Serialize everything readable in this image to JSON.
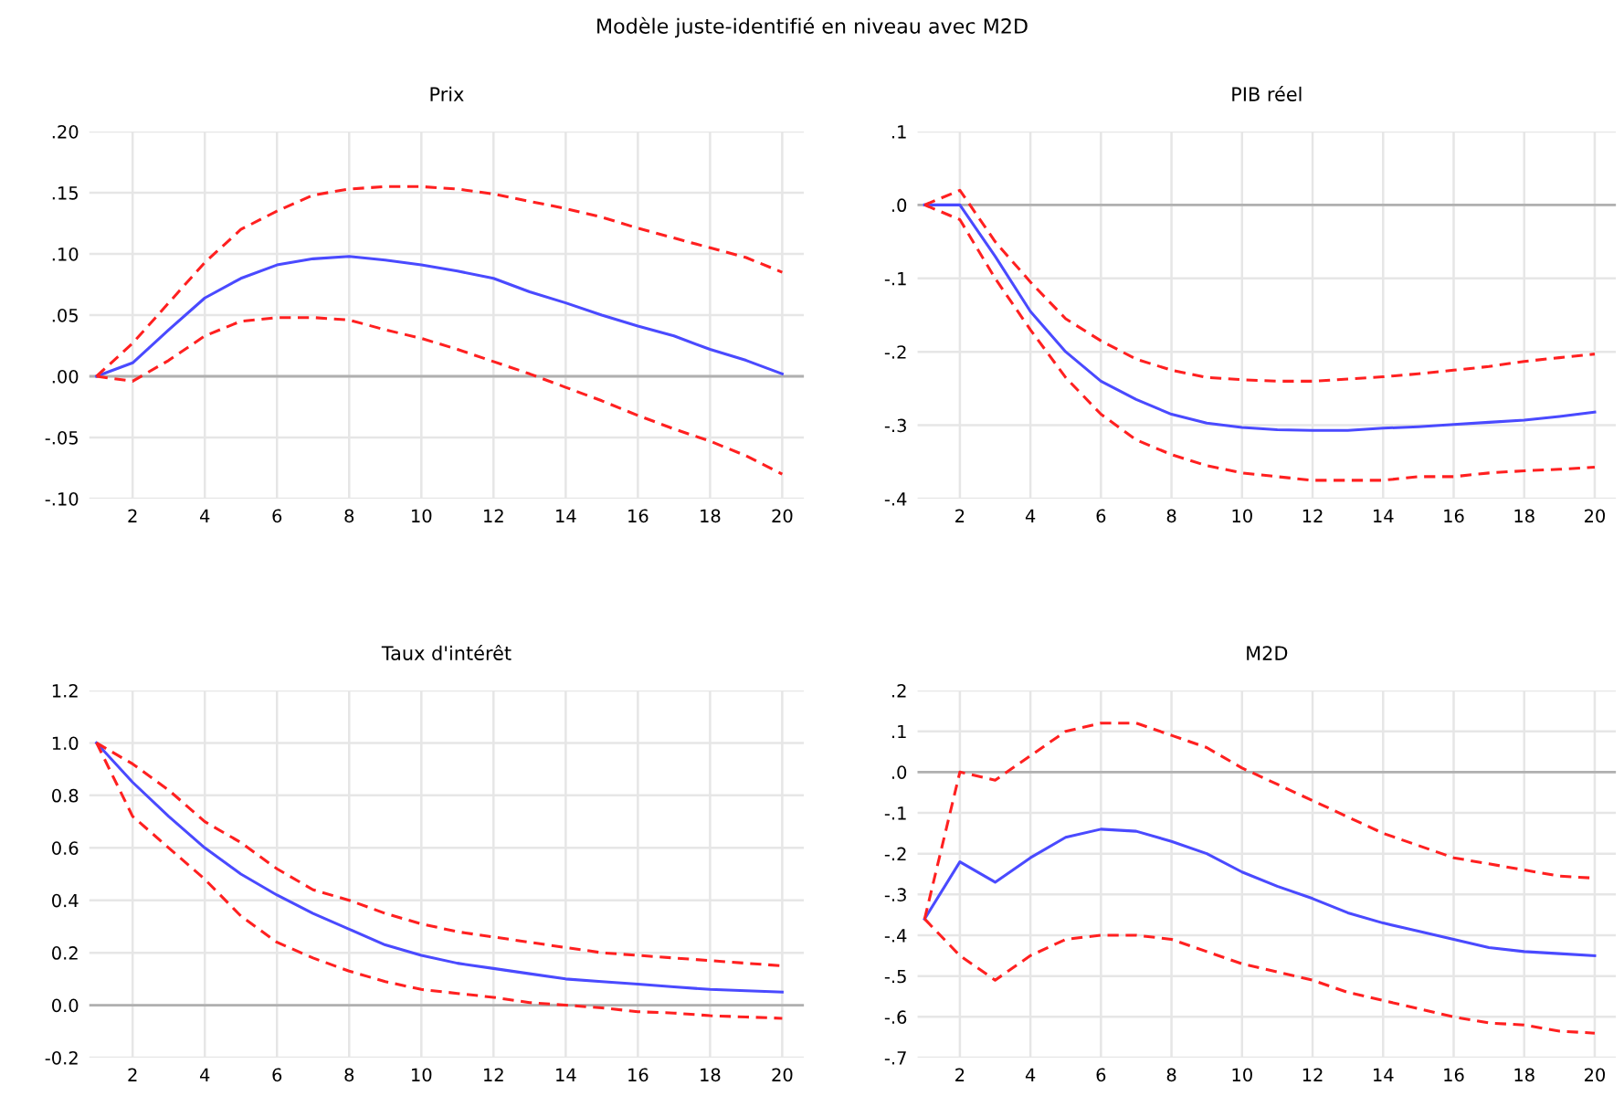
{
  "chart_data": [
    {
      "type": "other",
      "title": "Modèle juste-identifié en niveau avec M2D"
    },
    {
      "type": "line",
      "title": "Prix",
      "x": [
        1,
        2,
        3,
        4,
        5,
        6,
        7,
        8,
        9,
        10,
        11,
        12,
        13,
        14,
        15,
        16,
        17,
        18,
        19,
        20
      ],
      "xlim": [
        0.8,
        20.6
      ],
      "xticks": [
        2,
        4,
        6,
        8,
        10,
        12,
        14,
        16,
        18,
        20
      ],
      "ylim": [
        -0.1,
        0.2
      ],
      "yticks": [
        {
          "value": -0.1,
          "label": "-.10"
        },
        {
          "value": -0.05,
          "label": "-.05"
        },
        {
          "value": 0,
          "label": ".00"
        },
        {
          "value": 0.05,
          "label": ".05"
        },
        {
          "value": 0.1,
          "label": ".10"
        },
        {
          "value": 0.15,
          "label": ".15"
        },
        {
          "value": 0.2,
          "label": ".20"
        }
      ],
      "grid": true,
      "ref_lines": [
        {
          "axis": "y",
          "value": 0,
          "color": "#b0b0b0"
        }
      ],
      "series": [
        {
          "color": "#4a4aff",
          "line_style": "solid",
          "values": [
            0,
            0.011,
            0.038,
            0.064,
            0.08,
            0.091,
            0.096,
            0.098,
            0.095,
            0.091,
            0.086,
            0.08,
            0.069,
            0.06,
            0.05,
            0.041,
            0.033,
            0.022,
            0.013,
            0.002
          ]
        },
        {
          "color": "#ff2020",
          "line_style": "dashed",
          "values": [
            0,
            0.027,
            0.06,
            0.093,
            0.12,
            0.135,
            0.148,
            0.153,
            0.155,
            0.155,
            0.153,
            0.149,
            0.143,
            0.137,
            0.13,
            0.121,
            0.113,
            0.105,
            0.097,
            0.085
          ]
        },
        {
          "color": "#ff2020",
          "line_style": "dashed",
          "values": [
            0,
            -0.004,
            0.013,
            0.033,
            0.045,
            0.048,
            0.048,
            0.046,
            0.038,
            0.031,
            0.022,
            0.012,
            0.002,
            -0.009,
            -0.02,
            -0.032,
            -0.043,
            -0.053,
            -0.065,
            -0.08
          ]
        }
      ]
    },
    {
      "type": "line",
      "title": "PIB réel",
      "x": [
        1,
        2,
        3,
        4,
        5,
        6,
        7,
        8,
        9,
        10,
        11,
        12,
        13,
        14,
        15,
        16,
        17,
        18,
        19,
        20
      ],
      "xlim": [
        0.8,
        20.6
      ],
      "xticks": [
        2,
        4,
        6,
        8,
        10,
        12,
        14,
        16,
        18,
        20
      ],
      "ylim": [
        -0.4,
        0.1
      ],
      "yticks": [
        {
          "value": -0.4,
          "label": "-.4"
        },
        {
          "value": -0.3,
          "label": "-.3"
        },
        {
          "value": -0.2,
          "label": "-.2"
        },
        {
          "value": -0.1,
          "label": "-.1"
        },
        {
          "value": 0,
          "label": ".0"
        },
        {
          "value": 0.1,
          "label": ".1"
        }
      ],
      "grid": true,
      "ref_lines": [
        {
          "axis": "y",
          "value": 0,
          "color": "#b0b0b0"
        }
      ],
      "series": [
        {
          "color": "#4a4aff",
          "line_style": "solid",
          "values": [
            0,
            0,
            -0.07,
            -0.145,
            -0.2,
            -0.24,
            -0.265,
            -0.285,
            -0.297,
            -0.303,
            -0.306,
            -0.307,
            -0.307,
            -0.304,
            -0.302,
            -0.299,
            -0.296,
            -0.293,
            -0.288,
            -0.282
          ]
        },
        {
          "color": "#ff2020",
          "line_style": "dashed",
          "values": [
            0,
            0.02,
            -0.05,
            -0.105,
            -0.155,
            -0.185,
            -0.21,
            -0.225,
            -0.235,
            -0.238,
            -0.24,
            -0.24,
            -0.237,
            -0.234,
            -0.23,
            -0.225,
            -0.22,
            -0.213,
            -0.208,
            -0.203
          ]
        },
        {
          "color": "#ff2020",
          "line_style": "dashed",
          "values": [
            0,
            -0.02,
            -0.1,
            -0.17,
            -0.235,
            -0.285,
            -0.32,
            -0.34,
            -0.355,
            -0.365,
            -0.37,
            -0.375,
            -0.375,
            -0.375,
            -0.37,
            -0.37,
            -0.365,
            -0.362,
            -0.36,
            -0.357
          ]
        }
      ]
    },
    {
      "type": "line",
      "title": "Taux d'intérêt",
      "x": [
        1,
        2,
        3,
        4,
        5,
        6,
        7,
        8,
        9,
        10,
        11,
        12,
        13,
        14,
        15,
        16,
        17,
        18,
        19,
        20
      ],
      "xlim": [
        0.8,
        20.6
      ],
      "xticks": [
        2,
        4,
        6,
        8,
        10,
        12,
        14,
        16,
        18,
        20
      ],
      "ylim": [
        -0.2,
        1.2
      ],
      "yticks": [
        {
          "value": -0.2,
          "label": "-0.2"
        },
        {
          "value": 0,
          "label": "0.0"
        },
        {
          "value": 0.2,
          "label": "0.2"
        },
        {
          "value": 0.4,
          "label": "0.4"
        },
        {
          "value": 0.6,
          "label": "0.6"
        },
        {
          "value": 0.8,
          "label": "0.8"
        },
        {
          "value": 1.0,
          "label": "1.0"
        },
        {
          "value": 1.2,
          "label": "1.2"
        }
      ],
      "grid": true,
      "ref_lines": [
        {
          "axis": "y",
          "value": 0,
          "color": "#b0b0b0"
        }
      ],
      "series": [
        {
          "color": "#4a4aff",
          "line_style": "solid",
          "values": [
            1.0,
            0.85,
            0.72,
            0.6,
            0.5,
            0.42,
            0.35,
            0.29,
            0.23,
            0.19,
            0.16,
            0.14,
            0.12,
            0.1,
            0.09,
            0.08,
            0.07,
            0.06,
            0.055,
            0.05
          ]
        },
        {
          "color": "#ff2020",
          "line_style": "dashed",
          "values": [
            1.0,
            0.92,
            0.82,
            0.7,
            0.62,
            0.52,
            0.44,
            0.4,
            0.35,
            0.31,
            0.28,
            0.26,
            0.24,
            0.22,
            0.2,
            0.19,
            0.18,
            0.17,
            0.16,
            0.15
          ]
        },
        {
          "color": "#ff2020",
          "line_style": "dashed",
          "values": [
            1.0,
            0.72,
            0.6,
            0.48,
            0.34,
            0.24,
            0.18,
            0.13,
            0.09,
            0.06,
            0.045,
            0.03,
            0.01,
            0,
            -0.01,
            -0.025,
            -0.03,
            -0.04,
            -0.045,
            -0.05
          ]
        }
      ]
    },
    {
      "type": "line",
      "title": "M2D",
      "x": [
        1,
        2,
        3,
        4,
        5,
        6,
        7,
        8,
        9,
        10,
        11,
        12,
        13,
        14,
        15,
        16,
        17,
        18,
        19,
        20
      ],
      "xlim": [
        0.8,
        20.6
      ],
      "xticks": [
        2,
        4,
        6,
        8,
        10,
        12,
        14,
        16,
        18,
        20
      ],
      "ylim": [
        -0.7,
        0.2
      ],
      "yticks": [
        {
          "value": -0.7,
          "label": "-.7"
        },
        {
          "value": -0.6,
          "label": "-.6"
        },
        {
          "value": -0.5,
          "label": "-.5"
        },
        {
          "value": -0.4,
          "label": "-.4"
        },
        {
          "value": -0.3,
          "label": "-.3"
        },
        {
          "value": -0.2,
          "label": "-.2"
        },
        {
          "value": -0.1,
          "label": "-.1"
        },
        {
          "value": 0,
          "label": ".0"
        },
        {
          "value": 0.1,
          "label": ".1"
        },
        {
          "value": 0.2,
          "label": ".2"
        }
      ],
      "grid": true,
      "ref_lines": [
        {
          "axis": "y",
          "value": 0,
          "color": "#b0b0b0"
        }
      ],
      "series": [
        {
          "color": "#4a4aff",
          "line_style": "solid",
          "values": [
            -0.36,
            -0.22,
            -0.27,
            -0.21,
            -0.16,
            -0.14,
            -0.145,
            -0.17,
            -0.2,
            -0.245,
            -0.28,
            -0.31,
            -0.345,
            -0.37,
            -0.39,
            -0.41,
            -0.43,
            -0.44,
            -0.445,
            -0.45
          ]
        },
        {
          "color": "#ff2020",
          "line_style": "dashed",
          "values": [
            -0.36,
            0,
            -0.02,
            0.04,
            0.1,
            0.12,
            0.12,
            0.09,
            0.06,
            0.01,
            -0.03,
            -0.07,
            -0.11,
            -0.15,
            -0.18,
            -0.21,
            -0.225,
            -0.24,
            -0.255,
            -0.26
          ]
        },
        {
          "color": "#ff2020",
          "line_style": "dashed",
          "values": [
            -0.36,
            -0.45,
            -0.51,
            -0.45,
            -0.41,
            -0.4,
            -0.4,
            -0.41,
            -0.44,
            -0.47,
            -0.49,
            -0.51,
            -0.54,
            -0.56,
            -0.58,
            -0.6,
            -0.615,
            -0.62,
            -0.635,
            -0.64
          ]
        }
      ]
    }
  ]
}
